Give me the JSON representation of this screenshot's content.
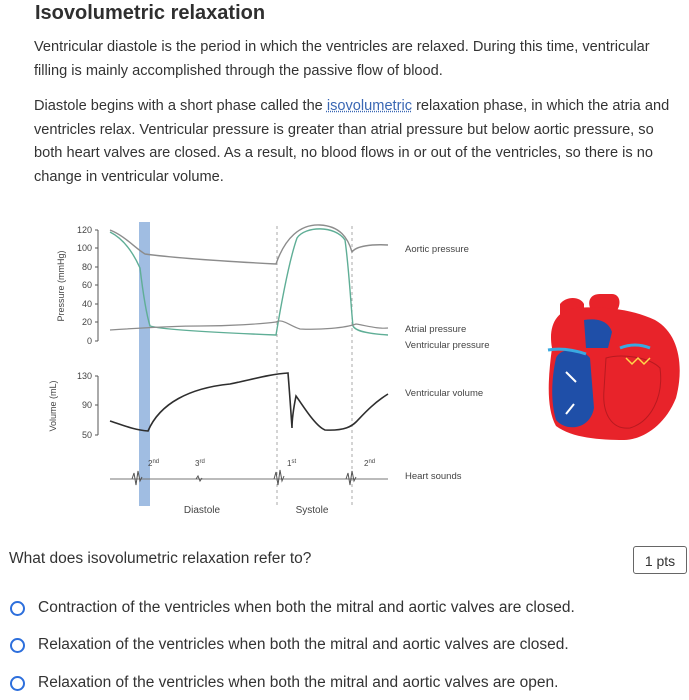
{
  "title": "Isovolumetric relaxation",
  "paragraph1": "Ventricular diastole is the period in which the ventricles are relaxed. During this time, ventricular filling is mainly accomplished through the passive flow of blood.",
  "paragraph2": {
    "before": "Diastole begins with a short phase called the ",
    "link": "isovolumetric",
    "after": " relaxation phase, in which the atria and ventricles relax. Ventricular pressure is greater than atrial pressure but below aortic pressure, so both heart valves are closed. As a result, no blood flows in or out of the ventricles, so there is no change in ventricular volume."
  },
  "diagram": {
    "pressure_axis_label": "Pressure (mmHg)",
    "pressure_ticks": [
      "120",
      "100",
      "80",
      "60",
      "40",
      "20",
      "0"
    ],
    "volume_axis_label": "Volume (mL)",
    "volume_ticks": [
      "130",
      "90",
      "50"
    ],
    "labels": {
      "aortic": "Aortic pressure",
      "atrial": "Atrial pressure",
      "ventricular": "Ventricular pressure",
      "volume": "Ventricular volume",
      "heart_sounds": "Heart sounds",
      "diastole": "Diastole",
      "systole": "Systole"
    },
    "sounds": [
      {
        "num": "2",
        "sup": "nd"
      },
      {
        "num": "3",
        "sup": "rd"
      },
      {
        "num": "1",
        "sup": "st"
      },
      {
        "num": "2",
        "sup": "nd"
      }
    ],
    "colors": {
      "aortic": "#8c8c8c",
      "ventricular_pressure": "#5fae96",
      "volume": "#2e2e2e",
      "highlight": "#8fb2dd",
      "heart_red": "#e8232a",
      "heart_blue": "#1f4fa8"
    }
  },
  "question": "What does isovolumetric relaxation refer to?",
  "points": "1 pts",
  "options": [
    "Contraction of the ventricles when both the mitral and aortic valves are closed.",
    "Relaxation of the ventricles when both the mitral and aortic valves are closed.",
    "Relaxation of the ventricles when both the mitral and aortic valves are open."
  ]
}
